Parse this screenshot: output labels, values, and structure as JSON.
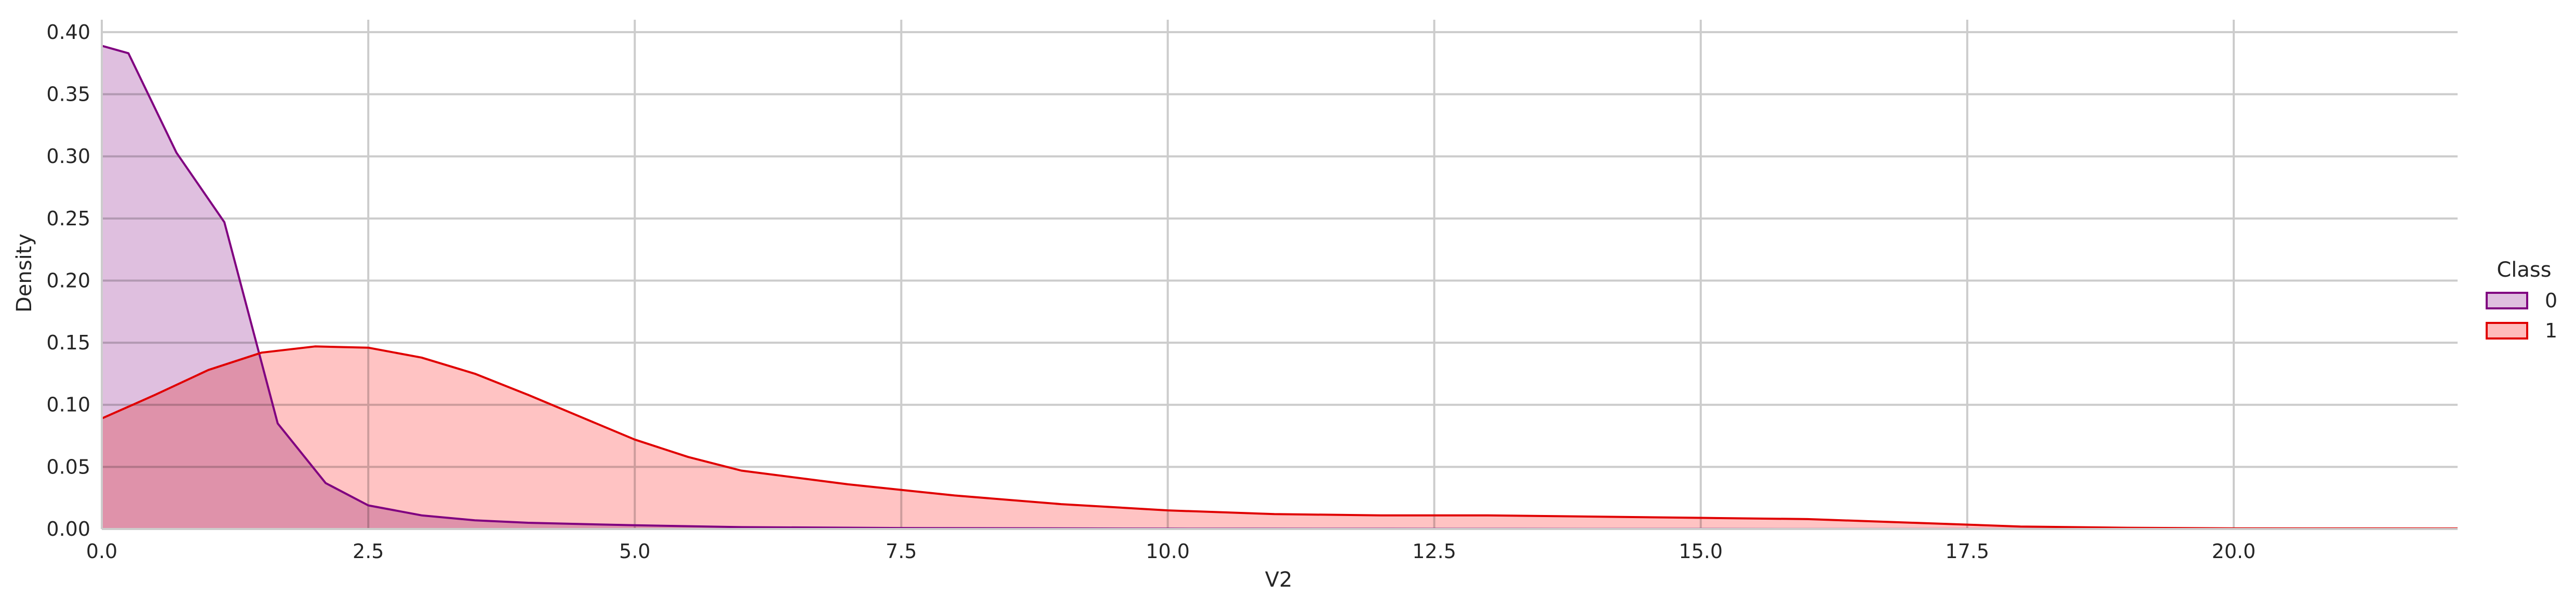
{
  "chart_data": {
    "type": "area",
    "title": "",
    "xlabel": "V2",
    "ylabel": "Density",
    "xlim": [
      0,
      22.1
    ],
    "ylim": [
      0,
      0.41
    ],
    "grid": true,
    "legend": {
      "title": "Class",
      "position": "right",
      "entries": [
        "0",
        "1"
      ]
    },
    "x_ticks": [
      0.0,
      2.5,
      5.0,
      7.5,
      10.0,
      12.5,
      15.0,
      17.5,
      20.0
    ],
    "x_tick_labels": [
      "0.0",
      "2.5",
      "5.0",
      "7.5",
      "10.0",
      "12.5",
      "15.0",
      "17.5",
      "20.0"
    ],
    "y_ticks": [
      0.0,
      0.05,
      0.1,
      0.15,
      0.2,
      0.25,
      0.3,
      0.35,
      0.4
    ],
    "y_tick_labels": [
      "0.00",
      "0.05",
      "0.10",
      "0.15",
      "0.20",
      "0.25",
      "0.30",
      "0.35",
      "0.40"
    ],
    "series": [
      {
        "name": "0",
        "line_color": "#800080",
        "fill_color": "#dfbfdf",
        "points": [
          [
            0.0,
            0.389
          ],
          [
            0.25,
            0.383
          ],
          [
            0.7,
            0.303
          ],
          [
            1.15,
            0.247
          ],
          [
            1.65,
            0.085
          ],
          [
            2.1,
            0.037
          ],
          [
            2.5,
            0.019
          ],
          [
            3.0,
            0.011
          ],
          [
            3.5,
            0.007
          ],
          [
            4.0,
            0.005
          ],
          [
            5.0,
            0.003
          ],
          [
            6.0,
            0.0015
          ],
          [
            7.5,
            0.0008
          ],
          [
            10.0,
            0.0003
          ],
          [
            15.0,
            0.0001
          ],
          [
            22.1,
            0.0
          ]
        ]
      },
      {
        "name": "1",
        "line_color": "#e00000",
        "fill_color": "#ffbcbc",
        "points": [
          [
            0.0,
            0.089
          ],
          [
            0.5,
            0.108
          ],
          [
            1.0,
            0.128
          ],
          [
            1.5,
            0.142
          ],
          [
            2.0,
            0.147
          ],
          [
            2.5,
            0.146
          ],
          [
            3.0,
            0.138
          ],
          [
            3.5,
            0.125
          ],
          [
            4.0,
            0.108
          ],
          [
            4.5,
            0.09
          ],
          [
            5.0,
            0.072
          ],
          [
            5.5,
            0.058
          ],
          [
            6.0,
            0.047
          ],
          [
            7.0,
            0.036
          ],
          [
            8.0,
            0.027
          ],
          [
            9.0,
            0.02
          ],
          [
            10.0,
            0.015
          ],
          [
            11.0,
            0.012
          ],
          [
            12.0,
            0.011
          ],
          [
            13.0,
            0.011
          ],
          [
            14.0,
            0.01
          ],
          [
            15.0,
            0.009
          ],
          [
            16.0,
            0.008
          ],
          [
            17.0,
            0.005
          ],
          [
            18.0,
            0.002
          ],
          [
            19.0,
            0.001
          ],
          [
            20.0,
            0.0005
          ],
          [
            22.1,
            0.0004
          ]
        ]
      }
    ]
  }
}
